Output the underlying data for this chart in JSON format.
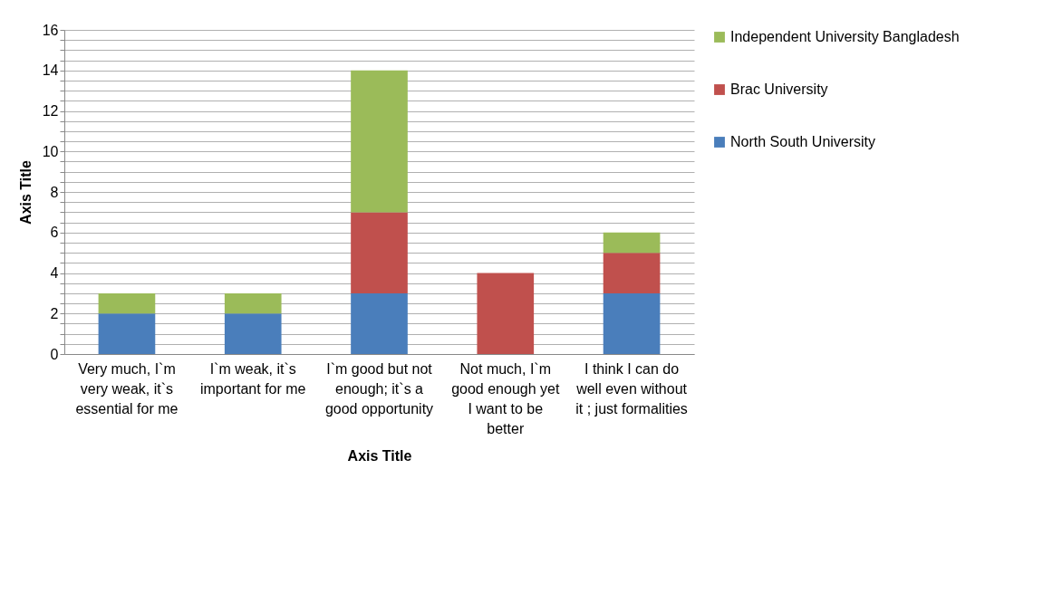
{
  "chart_data": {
    "type": "bar",
    "stacked": true,
    "xlabel": "Axis Title",
    "ylabel": "Axis Title",
    "categories": [
      "Very much, I`m very weak, it`s essential for me",
      "I`m weak, it`s important for me",
      "I`m good but not enough; it`s a good opportunity",
      "Not much, I`m good enough yet I want to be better",
      "I think I can do well even without it ; just formalities"
    ],
    "series": [
      {
        "name": "North South University",
        "color": "#4a7ebb",
        "values": [
          2,
          2,
          3,
          0,
          3
        ]
      },
      {
        "name": "Brac University",
        "color": "#c0504d",
        "values": [
          0,
          0,
          4,
          4,
          2
        ]
      },
      {
        "name": "Independent University Bangladesh",
        "color": "#9bbb59",
        "values": [
          1,
          1,
          7,
          0,
          1
        ]
      }
    ],
    "ylim": [
      0,
      16
    ],
    "yticks": [
      0,
      {
        "value": 0.5,
        "label": null
      },
      {
        "value": 1,
        "label": null
      },
      {
        "value": 1.5,
        "label": null
      },
      2,
      {
        "value": 2.5,
        "label": null
      },
      {
        "value": 3,
        "label": null
      },
      {
        "value": 3.5,
        "label": null
      },
      4,
      {
        "value": 4.5,
        "label": null
      },
      {
        "value": 5,
        "label": null
      },
      {
        "value": 5.5,
        "label": null
      },
      6,
      {
        "value": 6.5,
        "label": null
      },
      {
        "value": 7,
        "label": null
      },
      {
        "value": 7.5,
        "label": null
      },
      8,
      {
        "value": 8.5,
        "label": null
      },
      {
        "value": 9,
        "label": null
      },
      {
        "value": 9.5,
        "label": null
      },
      10,
      {
        "value": 10.5,
        "label": null
      },
      {
        "value": 11,
        "label": null
      },
      {
        "value": 11.5,
        "label": null
      },
      12,
      {
        "value": 12.5,
        "label": null
      },
      {
        "value": 13,
        "label": null
      },
      {
        "value": 13.5,
        "label": null
      },
      14,
      {
        "value": 14.5,
        "label": null
      },
      {
        "value": 15,
        "label": null
      },
      {
        "value": 15.5,
        "label": null
      },
      16
    ],
    "grid": "y",
    "legend": "right"
  }
}
